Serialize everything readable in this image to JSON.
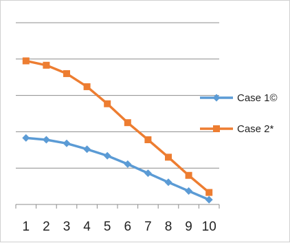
{
  "chart_data": {
    "type": "line",
    "title": "",
    "xlabel": "",
    "ylabel": "",
    "x": [
      1,
      2,
      3,
      4,
      5,
      6,
      7,
      8,
      9,
      10
    ],
    "ylim": [
      0,
      5
    ],
    "grid": true,
    "legend_position": "right",
    "series": [
      {
        "name": "Case 1©",
        "color": "#5b9bd5",
        "marker": "diamond",
        "values": [
          1.83,
          1.78,
          1.68,
          1.52,
          1.34,
          1.11,
          0.86,
          0.61,
          0.37,
          0.13
        ]
      },
      {
        "name": "Case 2*",
        "color": "#ed7d31",
        "marker": "square",
        "values": [
          3.95,
          3.83,
          3.6,
          3.24,
          2.77,
          2.25,
          1.78,
          1.3,
          0.8,
          0.33
        ]
      }
    ]
  }
}
